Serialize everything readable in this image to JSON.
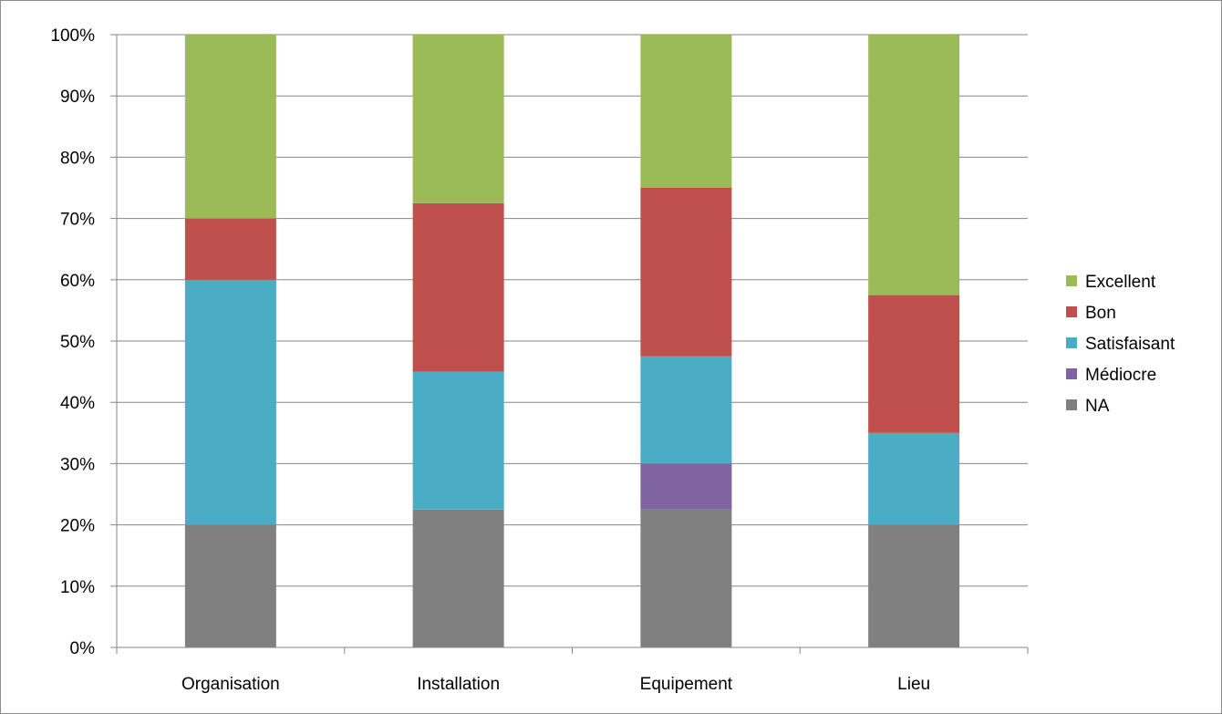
{
  "chart_data": {
    "type": "bar",
    "stacked": true,
    "percent_stacked": true,
    "categories": [
      "Organisation",
      "Installation",
      "Equipement",
      "Lieu"
    ],
    "series": [
      {
        "name": "NA",
        "color": "#808080",
        "values": [
          20,
          22.5,
          22.5,
          20
        ]
      },
      {
        "name": "Médiocre",
        "color": "#8064a2",
        "values": [
          0,
          0,
          7.5,
          0
        ]
      },
      {
        "name": "Satisfaisant",
        "color": "#4bacc6",
        "values": [
          40,
          22.5,
          17.5,
          15
        ]
      },
      {
        "name": "Bon",
        "color": "#c0504d",
        "values": [
          10,
          27.5,
          27.5,
          22.5
        ]
      },
      {
        "name": "Excellent",
        "color": "#9bbb59",
        "values": [
          30,
          27.5,
          25,
          42.5
        ]
      }
    ],
    "legend_order": [
      "Excellent",
      "Bon",
      "Satisfaisant",
      "Médiocre",
      "NA"
    ],
    "y_ticks": [
      "0%",
      "10%",
      "20%",
      "30%",
      "40%",
      "50%",
      "60%",
      "70%",
      "80%",
      "90%",
      "100%"
    ],
    "ylim": [
      0,
      100
    ],
    "title": "",
    "xlabel": "",
    "ylabel": "",
    "grid": true,
    "legend_position": "right"
  }
}
